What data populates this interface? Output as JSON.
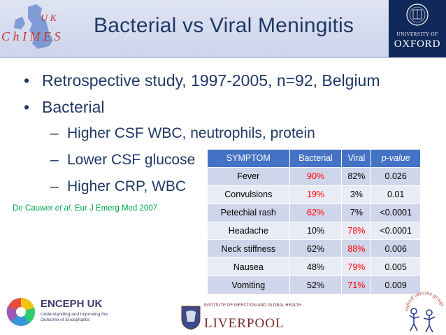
{
  "header": {
    "title": "Bacterial vs Viral Meningitis",
    "chimes_logo_letters": {
      "top": "U K",
      "bottom": "C h I M E S"
    },
    "oxford": {
      "university_of": "UNIVERSITY OF",
      "name": "OXFORD"
    }
  },
  "bullets": [
    "Retrospective study, 1997-2005, n=92, Belgium",
    "Bacterial"
  ],
  "sub_bullets": [
    "Higher CSF WBC, neutrophils, protein",
    "Lower CSF glucose",
    "Higher CRP, WBC"
  ],
  "citation": {
    "authors_pre": "De Cauwer ",
    "authors_em": "et al",
    "rest": ". Eur J Emerg Med 2007"
  },
  "table": {
    "headers": [
      "SYMPTOM",
      "Bacterial",
      "Viral",
      "p-value"
    ],
    "rows": [
      {
        "symptom": "Fever",
        "bacterial": "90%",
        "viral": "82%",
        "p": "0.026",
        "highlight": "bacterial"
      },
      {
        "symptom": "Convulsions",
        "bacterial": "19%",
        "viral": "3%",
        "p": "0.01",
        "highlight": "bacterial"
      },
      {
        "symptom": "Petechial rash",
        "bacterial": "62%",
        "viral": "7%",
        "p": "<0.0001",
        "highlight": "bacterial"
      },
      {
        "symptom": "Headache",
        "bacterial": "10%",
        "viral": "78%",
        "p": "<0.0001",
        "highlight": "viral"
      },
      {
        "symptom": "Neck stiffness",
        "bacterial": "62%",
        "viral": "88%",
        "p": "0.006",
        "highlight": "viral"
      },
      {
        "symptom": "Nausea",
        "bacterial": "48%",
        "viral": "79%",
        "p": "0.005",
        "highlight": "viral"
      },
      {
        "symptom": "Vomiting",
        "bacterial": "52%",
        "viral": "71%",
        "p": "0.009",
        "highlight": "viral"
      }
    ]
  },
  "footer": {
    "encepth": {
      "title": "ENCEPH UK",
      "subtitle": "Understanding and Improving the Outcome of Encephalitis"
    },
    "liverpool": {
      "small": "INSTITUTE OF INFECTION AND GLOBAL HEALTH",
      "big": "LIVERPOOL"
    },
    "ovg": {
      "text": "oxford vaccine group"
    }
  },
  "colors": {
    "title": "#1f3864",
    "header_bg": "#dfe4f3",
    "table_header": "#4472c4",
    "row_odd": "#cfd5ea",
    "row_even": "#e9ebf5",
    "highlight": "#ff0000",
    "citation": "#00a651",
    "oxford_blue": "#10295a"
  }
}
